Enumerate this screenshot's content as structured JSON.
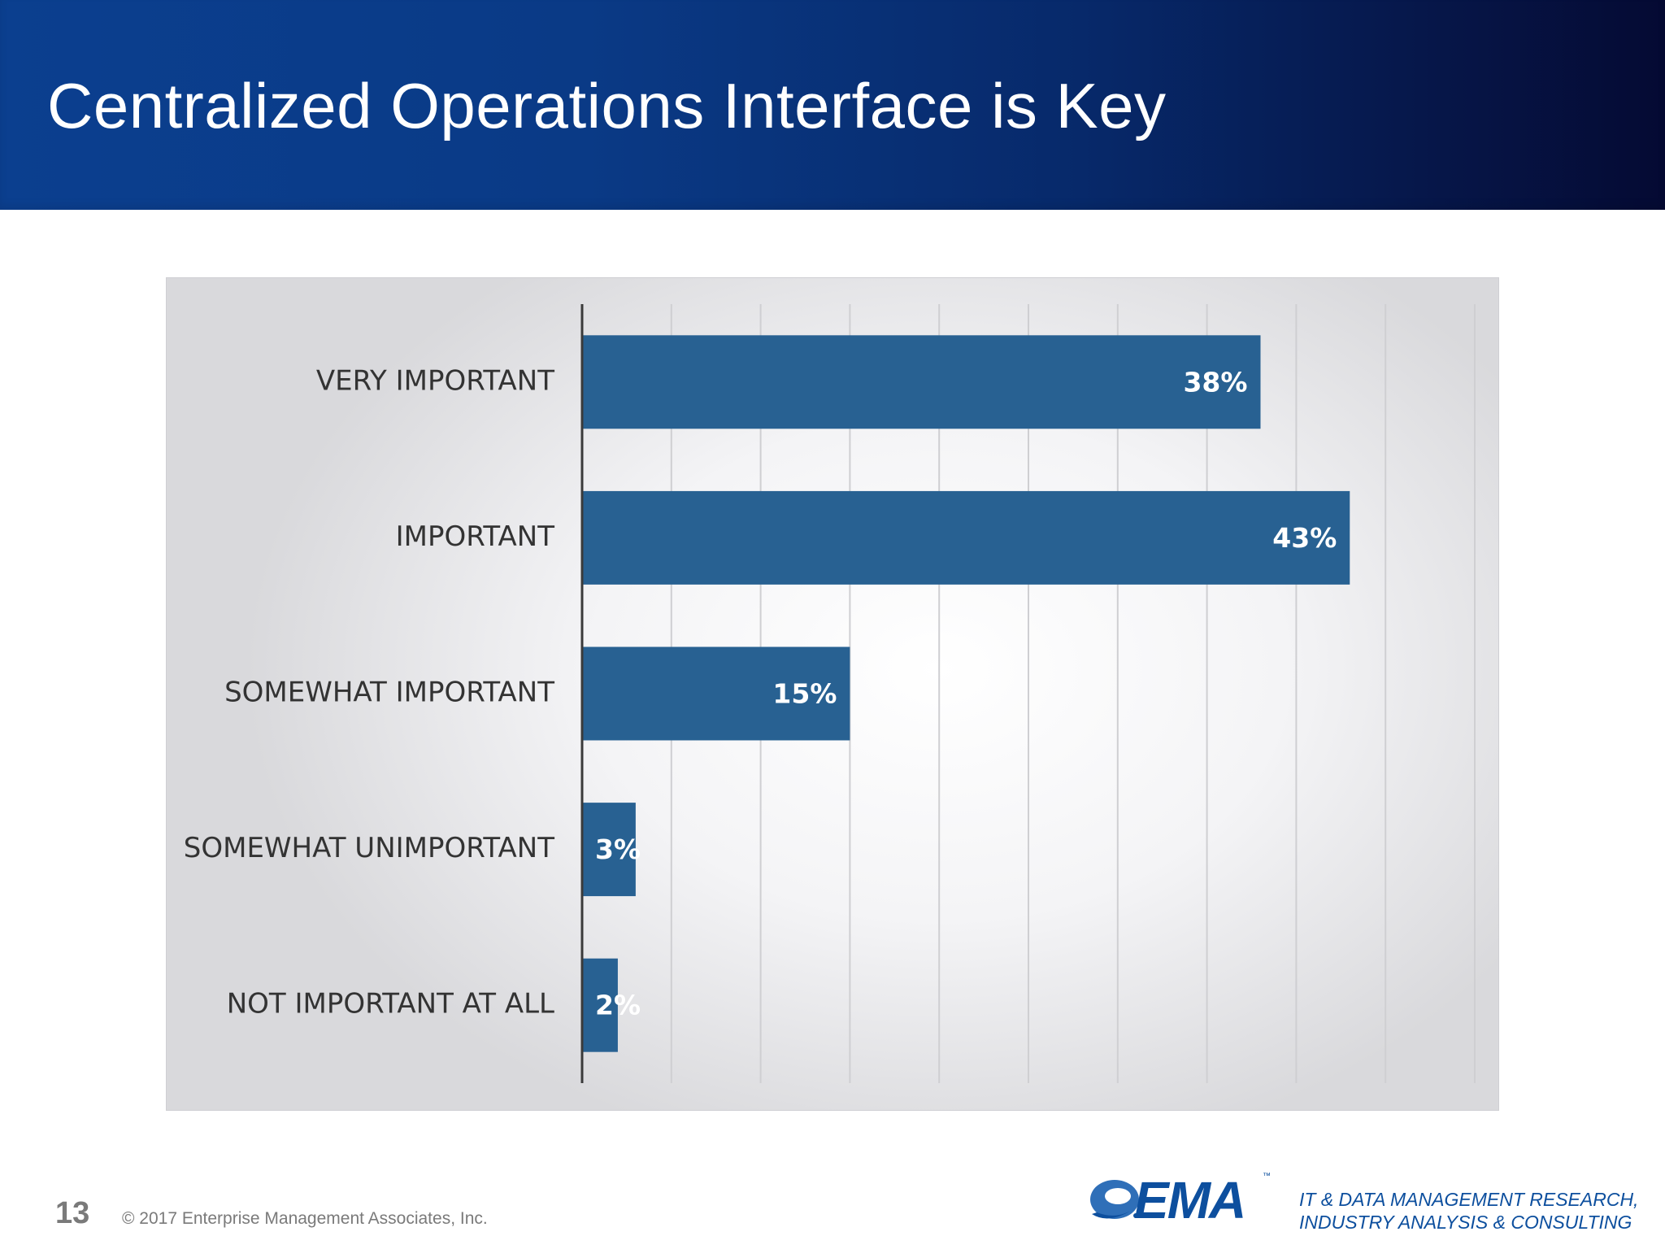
{
  "slide": {
    "title": "Centralized Operations Interface is Key",
    "page_number": "13"
  },
  "footer": {
    "copyright": "© 2017 Enterprise Management Associates, Inc.",
    "logo_text": "EMA",
    "logo_tm": "™",
    "tagline_line1": "IT & DATA MANAGEMENT RESEARCH,",
    "tagline_line2": "INDUSTRY ANALYSIS & CONSULTING"
  },
  "colors": {
    "bar": "#286192",
    "header_start": "#0b3f8f",
    "header_end": "#050a33",
    "brand": "#0d4f9e"
  },
  "chart_data": {
    "type": "bar",
    "orientation": "horizontal",
    "categories": [
      "VERY IMPORTANT",
      "IMPORTANT",
      "SOMEWHAT IMPORTANT",
      "SOMEWHAT UNIMPORTANT",
      "NOT IMPORTANT AT ALL"
    ],
    "values": [
      38,
      43,
      15,
      3,
      2
    ],
    "value_labels": [
      "38%",
      "43%",
      "15%",
      "3%",
      "2%"
    ],
    "xlim": [
      0,
      50
    ],
    "x_gridline_step": 5,
    "grid": true,
    "legend": "none"
  }
}
